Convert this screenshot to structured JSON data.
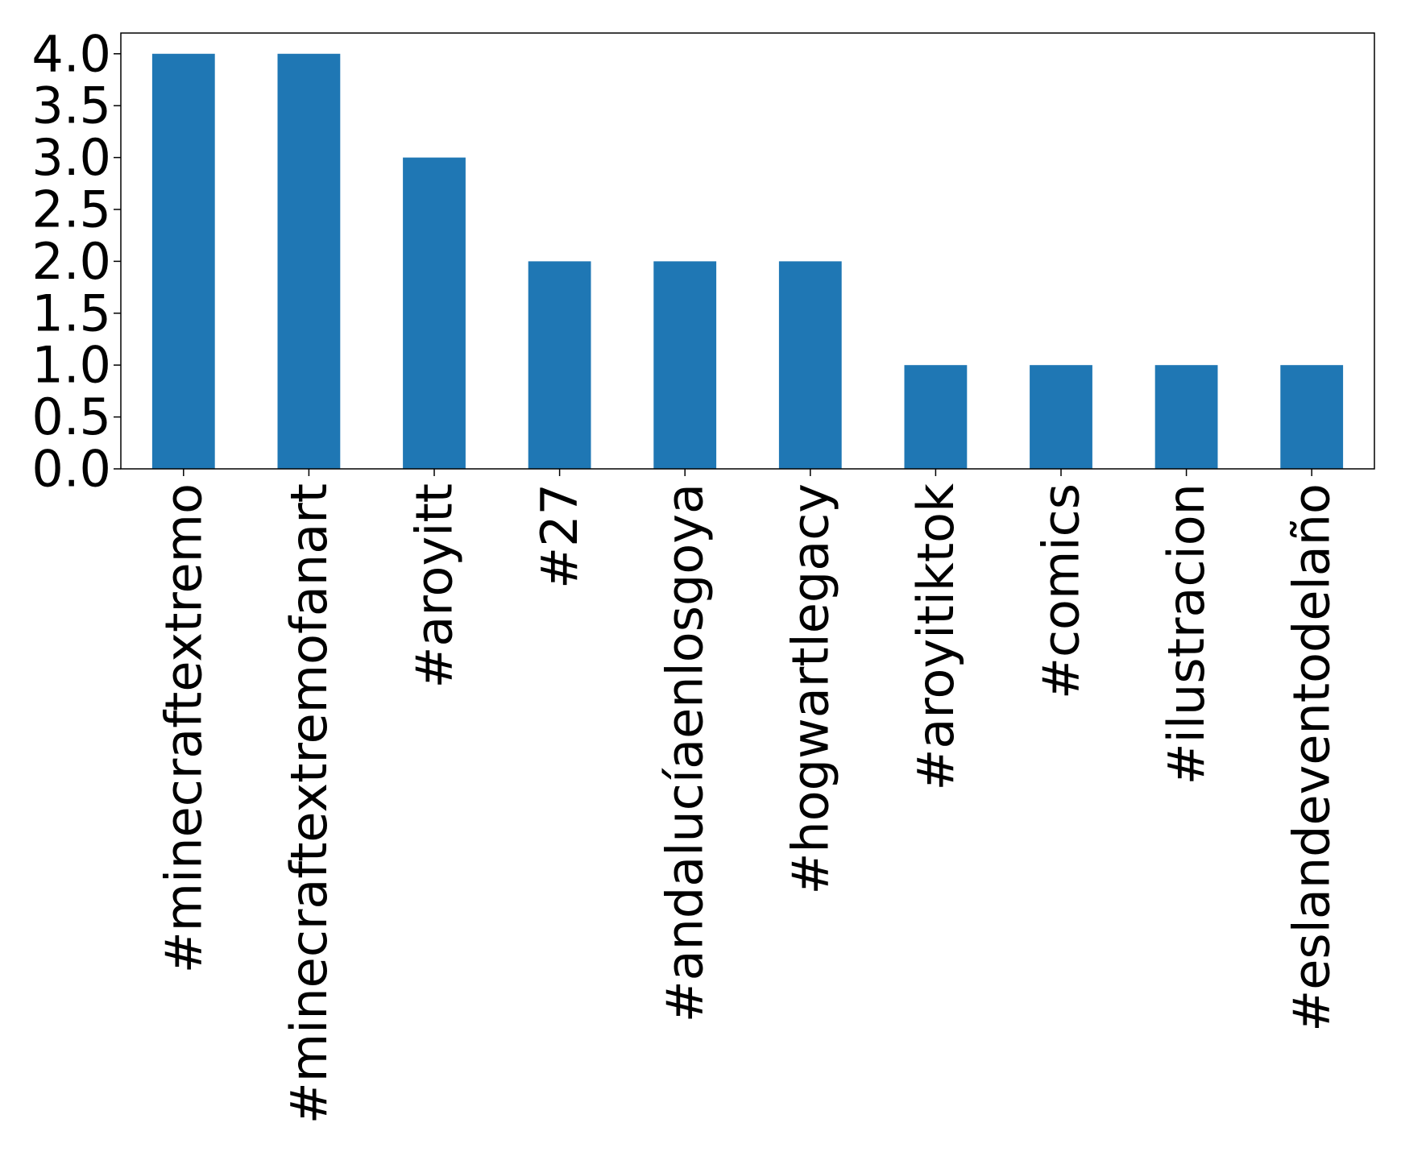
{
  "chart_data": {
    "type": "bar",
    "categories": [
      "#minecraftextremo",
      "#minecraftextremofanart",
      "#aroyitt",
      "#27",
      "#andalucíaenlosgoya",
      "#hogwartlegacy",
      "#aroyitiktok",
      "#comics",
      "#ilustracion",
      "#eslandeventodelaño"
    ],
    "values": [
      4,
      4,
      3,
      2,
      2,
      2,
      1,
      1,
      1,
      1
    ],
    "yticks": [
      "0.0",
      "0.5",
      "1.0",
      "1.5",
      "2.0",
      "2.5",
      "3.0",
      "3.5",
      "4.0"
    ],
    "ylim": [
      0,
      4.2
    ],
    "grid": false,
    "legend": "none",
    "title": "",
    "xlabel": "",
    "ylabel": "",
    "colors": {
      "bar": "#1f77b4",
      "axis": "#000000",
      "background": "#ffffff"
    }
  }
}
